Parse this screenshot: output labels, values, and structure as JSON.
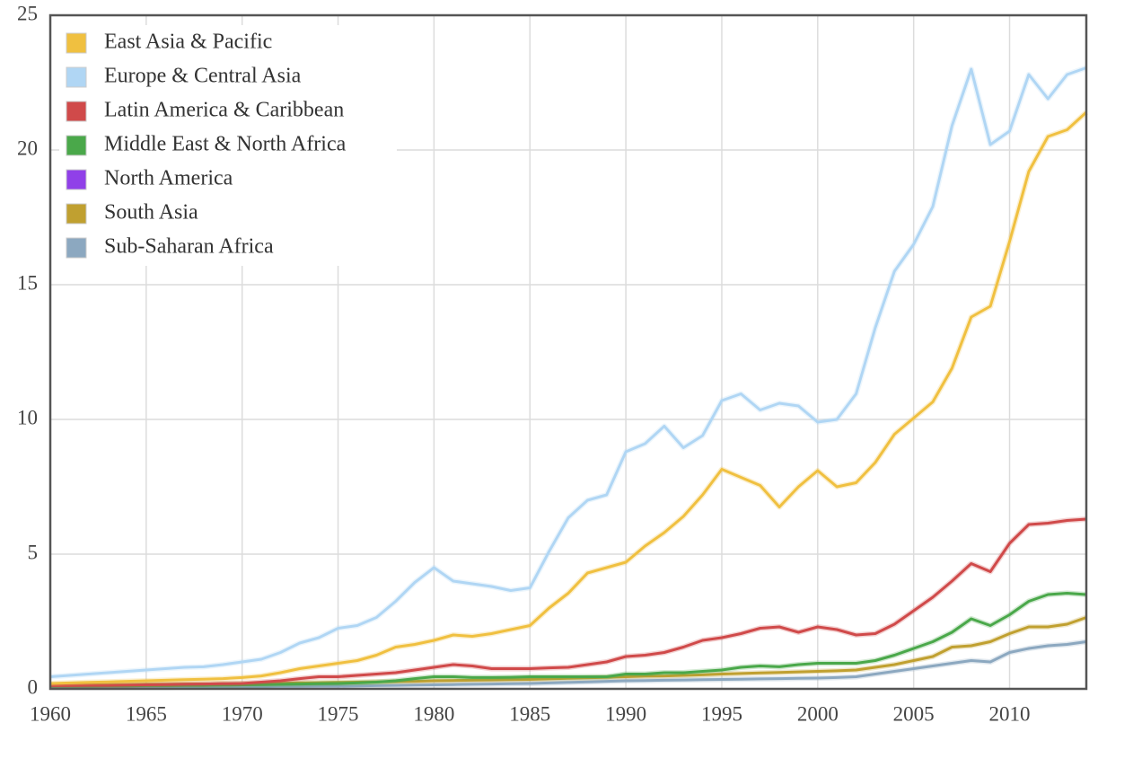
{
  "chart_data": {
    "type": "line",
    "x": [
      1960,
      1961,
      1962,
      1963,
      1964,
      1965,
      1966,
      1967,
      1968,
      1969,
      1970,
      1971,
      1972,
      1973,
      1974,
      1975,
      1976,
      1977,
      1978,
      1979,
      1980,
      1981,
      1982,
      1983,
      1984,
      1985,
      1986,
      1987,
      1988,
      1989,
      1990,
      1991,
      1992,
      1993,
      1994,
      1995,
      1996,
      1997,
      1998,
      1999,
      2000,
      2001,
      2002,
      2003,
      2004,
      2005,
      2006,
      2007,
      2008,
      2009,
      2010,
      2011,
      2012,
      2013,
      2014
    ],
    "xlim": [
      1960,
      2014
    ],
    "xticks": [
      1960,
      1965,
      1970,
      1975,
      1980,
      1985,
      1990,
      1995,
      2000,
      2005,
      2010
    ],
    "ylim": [
      0,
      25
    ],
    "yticks": [
      0,
      5,
      10,
      15,
      20,
      25
    ],
    "grid": true,
    "legend": "top-left",
    "series": [
      {
        "name": "East Asia & Pacific",
        "color": "#f0c040",
        "values": [
          0.2,
          0.22,
          0.24,
          0.26,
          0.28,
          0.3,
          0.32,
          0.34,
          0.36,
          0.38,
          0.42,
          0.48,
          0.6,
          0.75,
          0.85,
          0.95,
          1.05,
          1.25,
          1.55,
          1.65,
          1.8,
          2.0,
          1.95,
          2.05,
          2.2,
          2.35,
          3.0,
          3.55,
          4.3,
          4.5,
          4.7,
          5.3,
          5.8,
          6.4,
          7.2,
          8.15,
          7.85,
          7.55,
          6.75,
          7.5,
          8.1,
          7.5,
          7.65,
          8.4,
          9.45,
          10.05,
          10.65,
          11.9,
          13.8,
          14.2,
          16.6,
          19.2,
          20.5,
          20.75,
          21.4
        ]
      },
      {
        "name": "Europe & Central Asia",
        "color": "#b0d6f4",
        "values": [
          0.45,
          0.5,
          0.55,
          0.6,
          0.65,
          0.7,
          0.75,
          0.8,
          0.82,
          0.9,
          1.0,
          1.1,
          1.35,
          1.7,
          1.9,
          2.25,
          2.35,
          2.65,
          3.25,
          3.95,
          4.5,
          4.0,
          3.9,
          3.8,
          3.65,
          3.75,
          5.1,
          6.35,
          7.0,
          7.2,
          8.8,
          9.1,
          9.75,
          8.95,
          9.4,
          10.7,
          10.95,
          10.35,
          10.6,
          10.5,
          9.9,
          10.0,
          10.95,
          13.4,
          15.5,
          16.5,
          17.9,
          20.9,
          23.0,
          20.2,
          20.7,
          22.8,
          21.9,
          22.8,
          23.05
        ]
      },
      {
        "name": "Latin America & Caribbean",
        "color": "#d04a4a",
        "values": [
          0.12,
          0.12,
          0.13,
          0.13,
          0.14,
          0.15,
          0.16,
          0.17,
          0.18,
          0.19,
          0.2,
          0.25,
          0.3,
          0.38,
          0.45,
          0.45,
          0.5,
          0.55,
          0.6,
          0.7,
          0.8,
          0.9,
          0.85,
          0.75,
          0.75,
          0.75,
          0.78,
          0.8,
          0.9,
          1.0,
          1.2,
          1.25,
          1.35,
          1.55,
          1.8,
          1.9,
          2.05,
          2.25,
          2.3,
          2.1,
          2.3,
          2.2,
          2.0,
          2.05,
          2.4,
          2.9,
          3.4,
          4.0,
          4.65,
          4.35,
          5.4,
          6.1,
          6.15,
          6.25,
          6.3
        ]
      },
      {
        "name": "Middle East & North Africa",
        "color": "#4aa84a",
        "values": [
          0.1,
          0.1,
          0.1,
          0.11,
          0.11,
          0.12,
          0.12,
          0.13,
          0.13,
          0.14,
          0.15,
          0.16,
          0.17,
          0.18,
          0.19,
          0.2,
          0.22,
          0.25,
          0.3,
          0.38,
          0.45,
          0.45,
          0.42,
          0.42,
          0.43,
          0.45,
          0.45,
          0.45,
          0.45,
          0.45,
          0.55,
          0.55,
          0.6,
          0.6,
          0.65,
          0.7,
          0.8,
          0.85,
          0.82,
          0.9,
          0.95,
          0.95,
          0.95,
          1.05,
          1.25,
          1.5,
          1.75,
          2.1,
          2.6,
          2.35,
          2.75,
          3.25,
          3.5,
          3.55,
          3.5
        ]
      },
      {
        "name": "North America",
        "color": "#9040e8",
        "values": [
          null,
          null,
          null,
          null,
          null,
          null,
          null,
          null,
          null,
          null,
          null,
          null,
          null,
          null,
          null,
          null,
          null,
          null,
          null,
          null,
          null,
          null,
          null,
          null,
          null,
          null,
          null,
          null,
          null,
          null,
          null,
          null,
          null,
          null,
          null,
          null,
          null,
          null,
          null,
          null,
          null,
          null,
          null,
          null,
          null,
          null,
          null,
          null,
          null,
          null,
          null,
          null,
          null,
          null,
          null
        ]
      },
      {
        "name": "South Asia",
        "color": "#c0a030",
        "values": [
          0.15,
          0.15,
          0.15,
          0.16,
          0.16,
          0.17,
          0.17,
          0.18,
          0.18,
          0.19,
          0.2,
          0.2,
          0.21,
          0.22,
          0.23,
          0.24,
          0.25,
          0.26,
          0.27,
          0.28,
          0.3,
          0.31,
          0.32,
          0.33,
          0.34,
          0.35,
          0.37,
          0.39,
          0.41,
          0.43,
          0.45,
          0.47,
          0.48,
          0.5,
          0.52,
          0.55,
          0.57,
          0.59,
          0.61,
          0.63,
          0.65,
          0.67,
          0.7,
          0.8,
          0.9,
          1.05,
          1.2,
          1.55,
          1.6,
          1.75,
          2.05,
          2.3,
          2.3,
          2.4,
          2.65
        ]
      },
      {
        "name": "Sub-Saharan Africa",
        "color": "#8ca8c0",
        "values": [
          0.05,
          0.05,
          0.05,
          0.05,
          0.06,
          0.06,
          0.06,
          0.07,
          0.07,
          0.07,
          0.08,
          0.08,
          0.09,
          0.09,
          0.1,
          0.1,
          0.11,
          0.12,
          0.13,
          0.14,
          0.15,
          0.16,
          0.17,
          0.18,
          0.19,
          0.2,
          0.22,
          0.24,
          0.26,
          0.28,
          0.3,
          0.31,
          0.32,
          0.33,
          0.34,
          0.35,
          0.36,
          0.37,
          0.38,
          0.39,
          0.4,
          0.42,
          0.45,
          0.55,
          0.65,
          0.75,
          0.85,
          0.95,
          1.05,
          1.0,
          1.35,
          1.5,
          1.6,
          1.65,
          1.75
        ]
      }
    ]
  }
}
